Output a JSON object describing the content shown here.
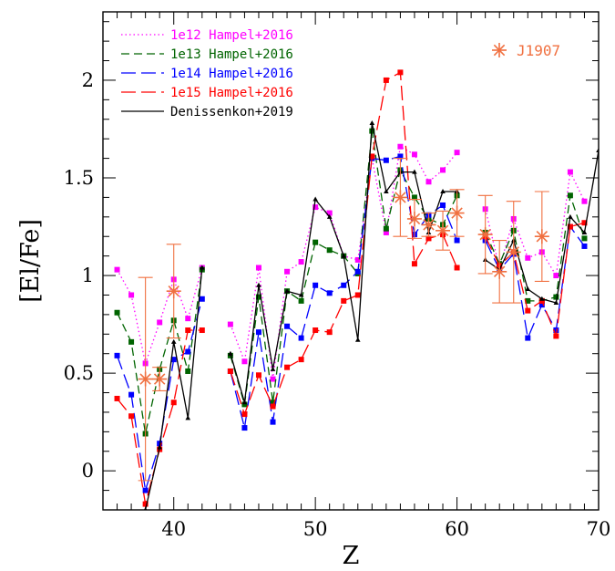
{
  "chart_data": {
    "type": "line",
    "xlabel": "Z",
    "ylabel": "[El/Fe]",
    "xlim": [
      35,
      70
    ],
    "ylim": [
      -0.2,
      2.35
    ],
    "x_ticks": [
      40,
      50,
      60,
      70
    ],
    "y_ticks": [
      0,
      0.5,
      1,
      1.5,
      2
    ],
    "y_tick_labels": [
      "0",
      "0.5",
      "1",
      "1.5",
      "2"
    ],
    "grid": false,
    "legend_position": "top-left",
    "series": [
      {
        "name": "1e12 Hampel+2016",
        "color": "#ff00ff",
        "style": "dotted",
        "marker": "square",
        "points": [
          [
            36,
            1.03
          ],
          [
            37,
            0.9
          ],
          [
            38,
            0.55
          ],
          [
            39,
            0.76
          ],
          [
            40,
            0.98
          ],
          [
            41,
            0.78
          ],
          [
            42,
            1.04
          ],
          [
            44,
            0.75
          ],
          [
            45,
            0.56
          ],
          [
            46,
            1.04
          ],
          [
            47,
            0.47
          ],
          [
            48,
            1.02
          ],
          [
            49,
            1.07
          ],
          [
            50,
            1.35
          ],
          [
            51,
            1.32
          ],
          [
            52,
            1.1
          ],
          [
            53,
            1.08
          ],
          [
            54,
            1.6
          ],
          [
            55,
            1.22
          ],
          [
            56,
            1.66
          ],
          [
            57,
            1.62
          ],
          [
            58,
            1.48
          ],
          [
            59,
            1.54
          ],
          [
            60,
            1.63
          ],
          [
            62,
            1.34
          ],
          [
            63,
            1.04
          ],
          [
            64,
            1.29
          ],
          [
            65,
            1.09
          ],
          [
            66,
            1.12
          ],
          [
            67,
            1.0
          ],
          [
            68,
            1.53
          ],
          [
            69,
            1.38
          ]
        ]
      },
      {
        "name": "1e13 Hampel+2016",
        "color": "#006400",
        "style": "dashed",
        "marker": "square",
        "points": [
          [
            36,
            0.81
          ],
          [
            37,
            0.66
          ],
          [
            38,
            0.19
          ],
          [
            39,
            0.52
          ],
          [
            40,
            0.77
          ],
          [
            41,
            0.51
          ],
          [
            42,
            1.03
          ],
          [
            44,
            0.59
          ],
          [
            45,
            0.34
          ],
          [
            46,
            0.89
          ],
          [
            47,
            0.35
          ],
          [
            48,
            0.92
          ],
          [
            49,
            0.87
          ],
          [
            50,
            1.17
          ],
          [
            51,
            1.13
          ],
          [
            52,
            1.1
          ],
          [
            53,
            1.01
          ],
          [
            54,
            1.74
          ],
          [
            55,
            1.24
          ],
          [
            56,
            1.54
          ],
          [
            57,
            1.4
          ],
          [
            58,
            1.29
          ],
          [
            59,
            1.26
          ],
          [
            60,
            1.41
          ],
          [
            62,
            1.22
          ],
          [
            63,
            1.06
          ],
          [
            64,
            1.23
          ],
          [
            65,
            0.87
          ],
          [
            66,
            0.87
          ],
          [
            67,
            0.89
          ],
          [
            68,
            1.41
          ],
          [
            69,
            1.19
          ]
        ]
      },
      {
        "name": "1e14 Hampel+2016",
        "color": "#0000ff",
        "style": "longdash",
        "marker": "square",
        "points": [
          [
            36,
            0.59
          ],
          [
            37,
            0.39
          ],
          [
            38,
            -0.1
          ],
          [
            39,
            0.14
          ],
          [
            40,
            0.57
          ],
          [
            41,
            0.61
          ],
          [
            42,
            0.88
          ],
          [
            44,
            0.51
          ],
          [
            45,
            0.22
          ],
          [
            46,
            0.71
          ],
          [
            47,
            0.25
          ],
          [
            48,
            0.74
          ],
          [
            49,
            0.68
          ],
          [
            50,
            0.95
          ],
          [
            51,
            0.91
          ],
          [
            52,
            0.95
          ],
          [
            53,
            1.02
          ],
          [
            54,
            1.6
          ],
          [
            55,
            1.59
          ],
          [
            56,
            1.61
          ],
          [
            57,
            1.21
          ],
          [
            58,
            1.31
          ],
          [
            59,
            1.36
          ],
          [
            60,
            1.18
          ],
          [
            62,
            1.18
          ],
          [
            63,
            1.03
          ],
          [
            64,
            1.11
          ],
          [
            65,
            0.68
          ],
          [
            66,
            0.85
          ],
          [
            67,
            0.72
          ],
          [
            68,
            1.25
          ],
          [
            69,
            1.15
          ]
        ]
      },
      {
        "name": "1e15 Hampel+2016",
        "color": "#ff0000",
        "style": "longdash",
        "marker": "square",
        "points": [
          [
            36,
            0.37
          ],
          [
            37,
            0.28
          ],
          [
            38,
            -0.17
          ],
          [
            39,
            0.11
          ],
          [
            40,
            0.35
          ],
          [
            41,
            0.72
          ],
          [
            42,
            0.72
          ],
          [
            44,
            0.51
          ],
          [
            45,
            0.29
          ],
          [
            46,
            0.49
          ],
          [
            47,
            0.33
          ],
          [
            48,
            0.53
          ],
          [
            49,
            0.57
          ],
          [
            50,
            0.72
          ],
          [
            51,
            0.71
          ],
          [
            52,
            0.87
          ],
          [
            53,
            0.9
          ],
          [
            54,
            1.61
          ],
          [
            55,
            2.0
          ],
          [
            56,
            2.04
          ],
          [
            57,
            1.06
          ],
          [
            58,
            1.19
          ],
          [
            59,
            1.21
          ],
          [
            60,
            1.04
          ],
          [
            62,
            1.2
          ],
          [
            63,
            1.05
          ],
          [
            64,
            1.12
          ],
          [
            65,
            0.82
          ],
          [
            66,
            0.87
          ],
          [
            67,
            0.69
          ],
          [
            68,
            1.25
          ],
          [
            69,
            1.27
          ]
        ]
      },
      {
        "name": "Denissenkon+2019",
        "color": "#000000",
        "style": "solid",
        "marker": "triangle",
        "points": [
          [
            38,
            -0.2
          ],
          [
            39,
            0.12
          ],
          [
            40,
            0.66
          ],
          [
            41,
            0.27
          ],
          [
            42,
            1.04
          ],
          [
            44,
            0.6
          ],
          [
            45,
            0.35
          ],
          [
            46,
            0.95
          ],
          [
            47,
            0.52
          ],
          [
            48,
            0.92
          ],
          [
            49,
            0.9
          ],
          [
            50,
            1.39
          ],
          [
            51,
            1.3
          ],
          [
            52,
            1.1
          ],
          [
            53,
            0.67
          ],
          [
            54,
            1.78
          ],
          [
            55,
            1.43
          ],
          [
            56,
            1.53
          ],
          [
            57,
            1.53
          ],
          [
            58,
            1.22
          ],
          [
            59,
            1.43
          ],
          [
            60,
            1.43
          ],
          [
            62,
            1.08
          ],
          [
            63,
            1.03
          ],
          [
            64,
            1.18
          ],
          [
            65,
            0.93
          ],
          [
            66,
            0.88
          ],
          [
            67,
            0.86
          ],
          [
            68,
            1.3
          ],
          [
            69,
            1.22
          ],
          [
            70,
            1.64
          ]
        ]
      }
    ],
    "observations": {
      "name": "J1907",
      "color": "#f07040",
      "marker": "asterisk",
      "points": [
        {
          "x": 38,
          "y": 0.47,
          "yerr": 0.52
        },
        {
          "x": 39,
          "y": 0.47,
          "yerr": 0.06
        },
        {
          "x": 40,
          "y": 0.92,
          "yerr": 0.24
        },
        {
          "x": 56,
          "y": 1.4,
          "yerr": 0.2
        },
        {
          "x": 57,
          "y": 1.29,
          "yerr": 0.1
        },
        {
          "x": 58,
          "y": 1.26,
          "yerr": 0.06
        },
        {
          "x": 59,
          "y": 1.23,
          "yerr": 0.1
        },
        {
          "x": 60,
          "y": 1.32,
          "yerr": 0.12
        },
        {
          "x": 62,
          "y": 1.21,
          "yerr": 0.2
        },
        {
          "x": 63,
          "y": 1.02,
          "yerr": 0.16
        },
        {
          "x": 64,
          "y": 1.12,
          "yerr": 0.26
        },
        {
          "x": 66,
          "y": 1.2,
          "yerr": 0.23
        }
      ]
    }
  }
}
